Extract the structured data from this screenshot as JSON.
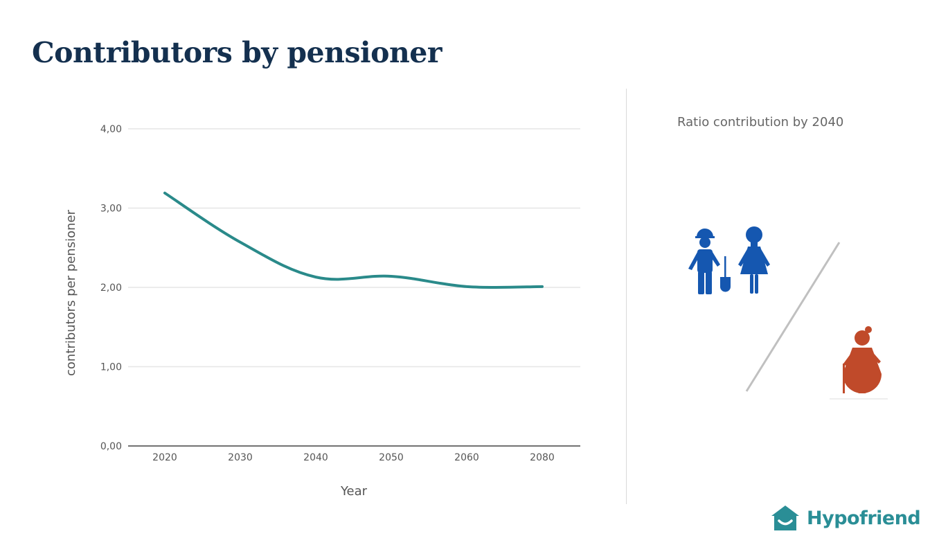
{
  "page": {
    "title": "Contributors by pensioner"
  },
  "chart_data": {
    "type": "line",
    "title": "",
    "xlabel": "Year",
    "ylabel": "contributors per pensioner",
    "categories": [
      "2020",
      "2030",
      "2040",
      "2050",
      "2060",
      "2080"
    ],
    "yticks": [
      "0,00",
      "1,00",
      "2,00",
      "3,00",
      "4,00"
    ],
    "ylim": [
      0,
      4
    ],
    "grid": true,
    "series": [
      {
        "values": [
          3.19,
          2.57,
          2.13,
          2.14,
          2.01,
          2.01
        ],
        "color": "#2a8a8a"
      }
    ]
  },
  "side_panel": {
    "title": "Ratio contribution by 2040",
    "icons": [
      "worker-icon",
      "woman-icon",
      "elderly-woman-icon"
    ],
    "colors": {
      "contributors": "#1557b0",
      "pensioner": "#c04a2a",
      "divider_slash": "#c0c0c0"
    }
  },
  "brand": {
    "name": "Hypofriend",
    "icon": "house-logo-icon",
    "color": "#2a8e96"
  }
}
